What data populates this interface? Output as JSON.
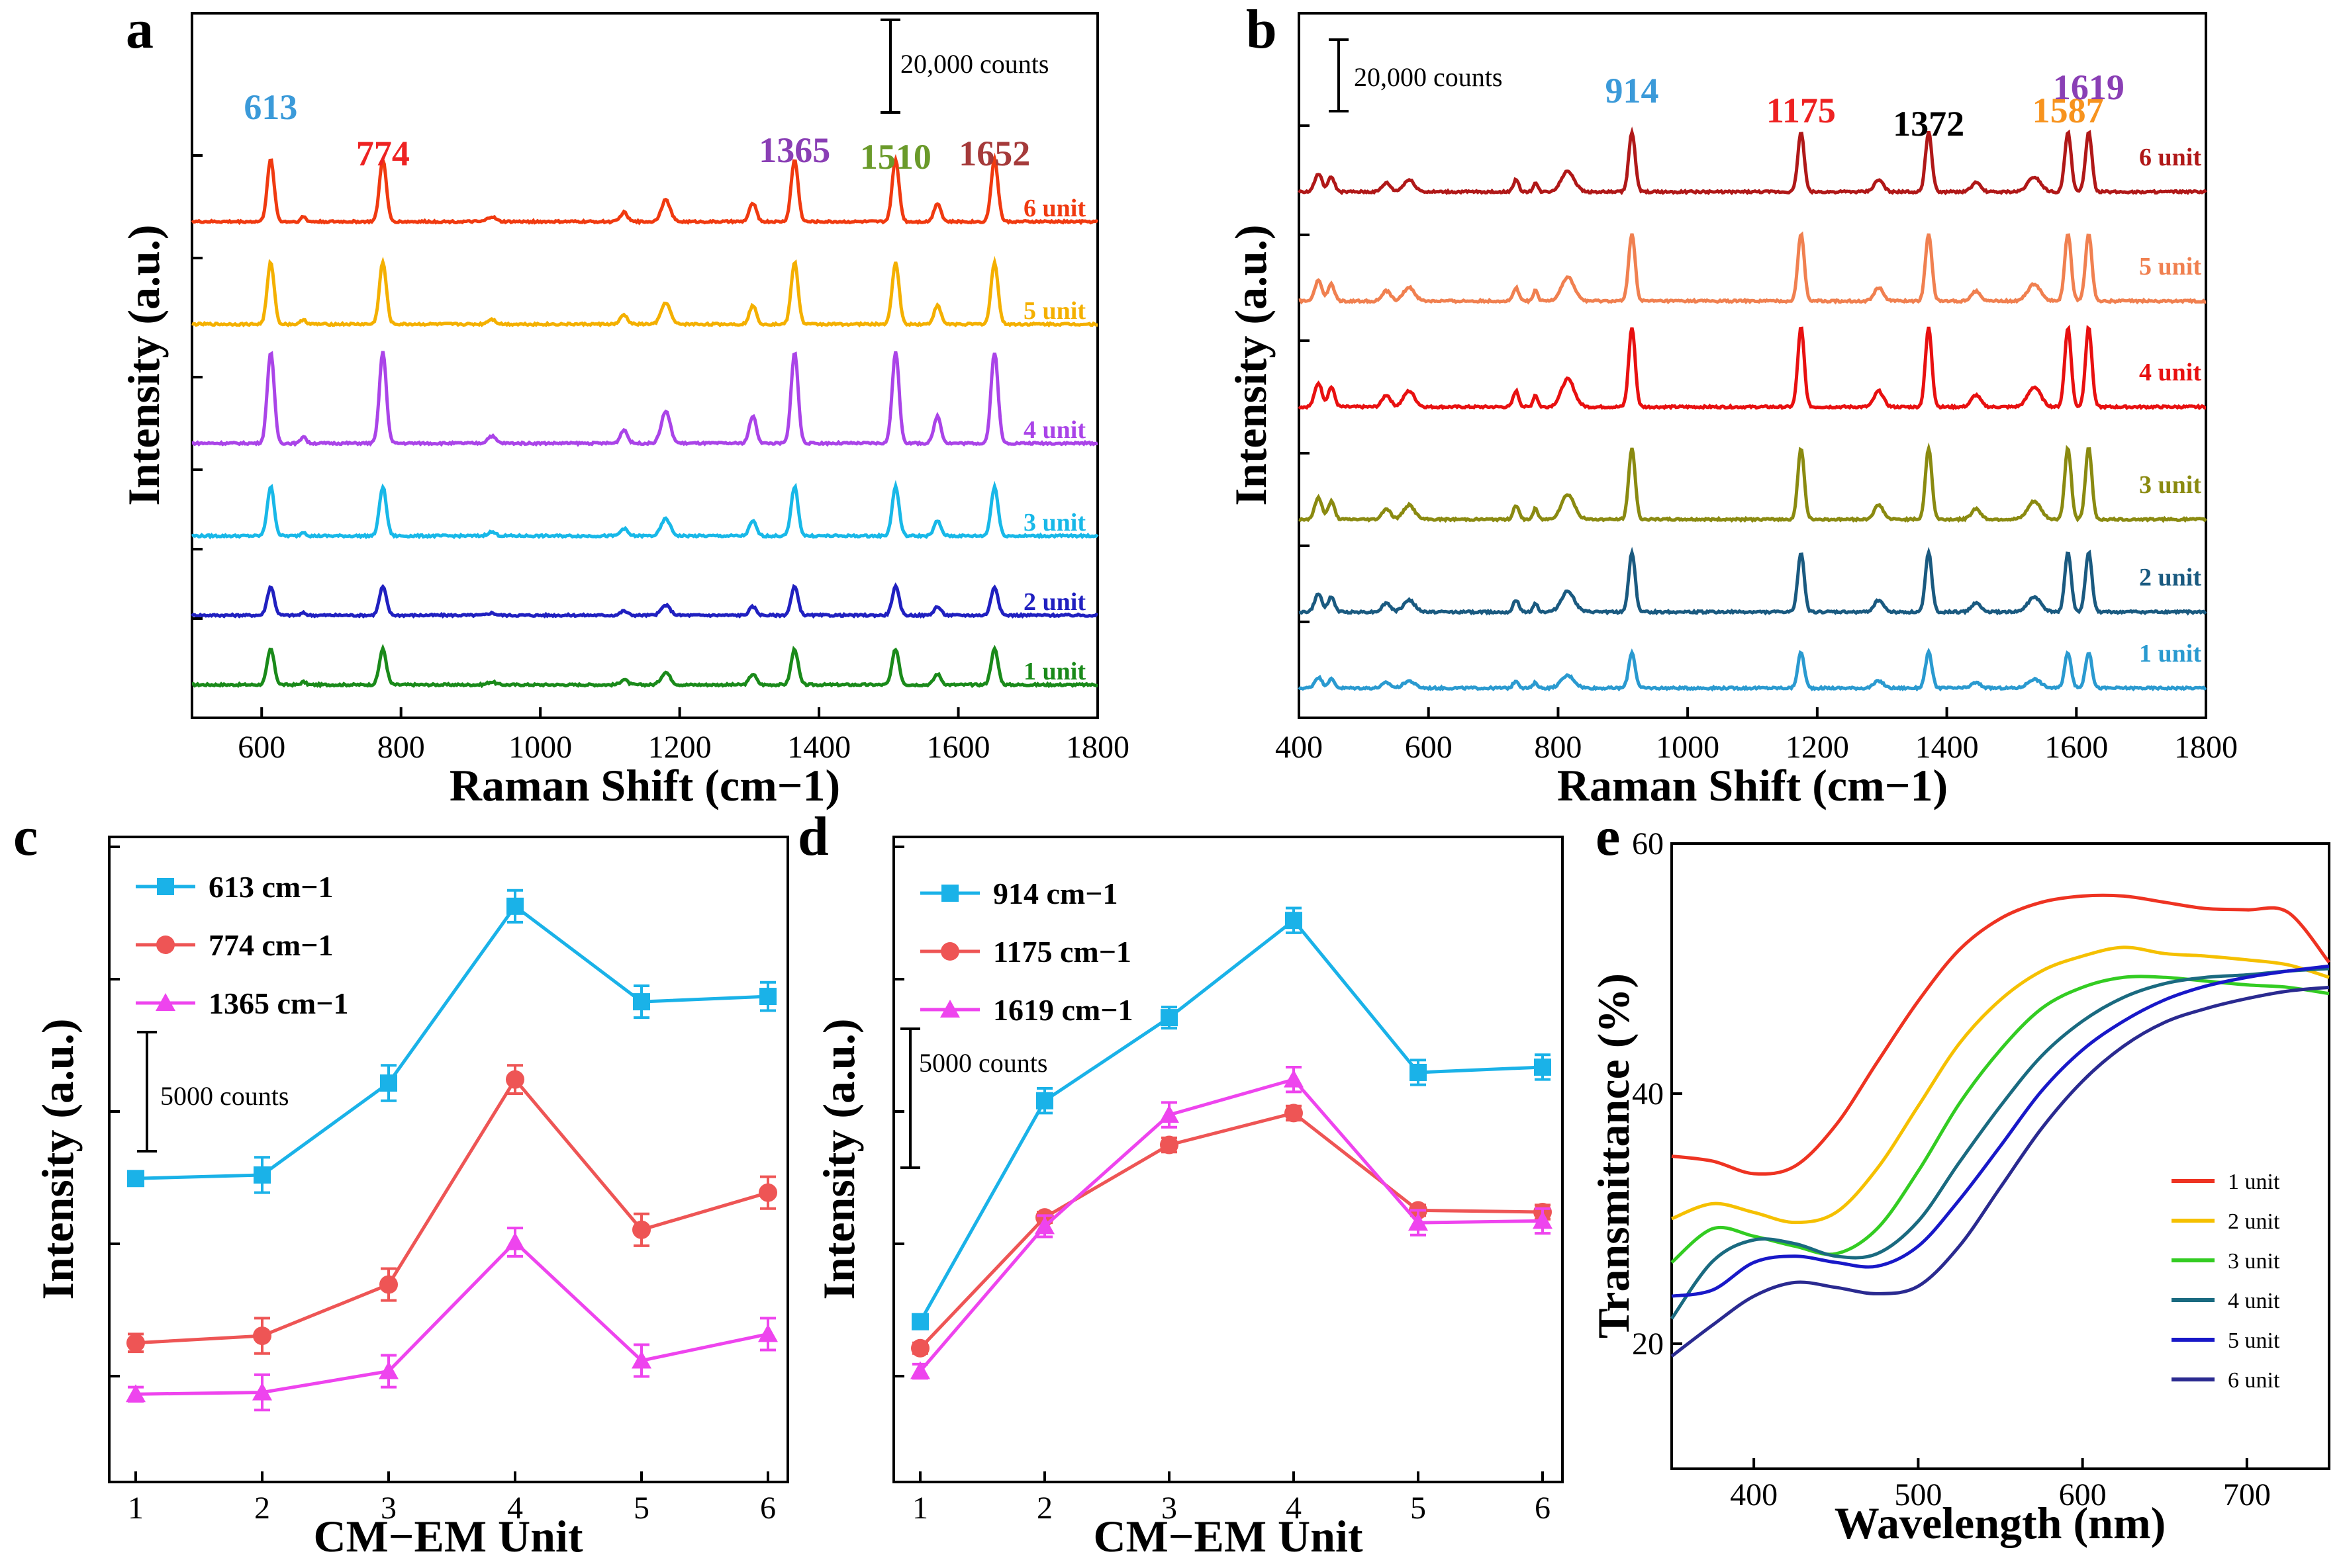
{
  "chart_data": [
    {
      "panel": "a",
      "type": "line",
      "xlabel": "Raman Shift (cm−1)",
      "ylabel": "Intensity (a.u.)",
      "xlim": [
        500,
        1800
      ],
      "xticks": [
        "600",
        "800",
        "1000",
        "1200",
        "1400",
        "1600",
        "1800"
      ],
      "scale_bar": "20,000 counts",
      "peaks": [
        {
          "pos": 613,
          "label": "613",
          "color": "#3b9ad9"
        },
        {
          "pos": 774,
          "label": "774",
          "color": "#ee2222"
        },
        {
          "pos": 1365,
          "label": "1365",
          "color": "#8a3fb5"
        },
        {
          "pos": 1510,
          "label": "1510",
          "color": "#6a9a2a"
        },
        {
          "pos": 1652,
          "label": "1652",
          "color": "#a53a3a"
        }
      ],
      "series": [
        {
          "name": "1 unit",
          "color": "#1a8a1a",
          "scale": 0.45
        },
        {
          "name": "2 unit",
          "color": "#2020c0",
          "scale": 0.36
        },
        {
          "name": "3 unit",
          "color": "#18b8e8",
          "scale": 0.62
        },
        {
          "name": "4 unit",
          "color": "#aa44e8",
          "scale": 1.15
        },
        {
          "name": "5 unit",
          "color": "#f4b000",
          "scale": 0.78
        },
        {
          "name": "6 unit",
          "color": "#f03a10",
          "scale": 0.78
        }
      ]
    },
    {
      "panel": "b",
      "type": "line",
      "xlabel": "Raman Shift (cm−1)",
      "ylabel": "Intensity (a.u.)",
      "xlim": [
        400,
        1800
      ],
      "xticks": [
        "400",
        "600",
        "800",
        "1000",
        "1200",
        "1400",
        "1600",
        "1800"
      ],
      "scale_bar": "20,000 counts",
      "peaks": [
        {
          "pos": 914,
          "label": "914",
          "color": "#3b9ad9"
        },
        {
          "pos": 1175,
          "label": "1175",
          "color": "#ee2222"
        },
        {
          "pos": 1372,
          "label": "1372",
          "color": "#000000"
        },
        {
          "pos": 1587,
          "label": "1587",
          "color": "#f7931e"
        },
        {
          "pos": 1619,
          "label": "1619",
          "color": "#8a3fb5"
        }
      ],
      "series": [
        {
          "name": "1 unit",
          "color": "#2a9ad0",
          "scale": 0.45
        },
        {
          "name": "2 unit",
          "color": "#1a5a80",
          "scale": 0.75
        },
        {
          "name": "3 unit",
          "color": "#8a8a10",
          "scale": 0.9
        },
        {
          "name": "4 unit",
          "color": "#e81010",
          "scale": 1.0
        },
        {
          "name": "5 unit",
          "color": "#f08050",
          "scale": 0.85
        },
        {
          "name": "6 unit",
          "color": "#b01818",
          "scale": 0.75
        }
      ]
    },
    {
      "panel": "c",
      "type": "line",
      "xlabel": "CM−EM Unit",
      "ylabel": "Intensity (a.u.)",
      "x": [
        1,
        2,
        3,
        4,
        5,
        6
      ],
      "xticks": [
        "1",
        "2",
        "3",
        "4",
        "5",
        "6"
      ],
      "ylim": [
        0,
        32000
      ],
      "scale_bar": "5000 counts",
      "series": [
        {
          "name": "613 cm−1",
          "marker": "square",
          "color": "#1ab2e8",
          "values": [
            13800,
            14000,
            19200,
            29200,
            23800,
            24100
          ],
          "err": [
            400,
            1000,
            1000,
            900,
            900,
            800
          ]
        },
        {
          "name": "774 cm−1",
          "marker": "circle",
          "color": "#ee5555",
          "values": [
            4500,
            4900,
            7800,
            19400,
            10900,
            13000
          ],
          "err": [
            500,
            1000,
            900,
            800,
            900,
            900
          ]
        },
        {
          "name": "1365 cm−1",
          "marker": "triangle",
          "color": "#ee44ee",
          "values": [
            1600,
            1700,
            2900,
            10200,
            3500,
            5000
          ],
          "err": [
            400,
            1000,
            900,
            800,
            900,
            900
          ]
        }
      ]
    },
    {
      "panel": "d",
      "type": "line",
      "xlabel": "CM−EM Unit",
      "ylabel": "Intensity (a.u.)",
      "x": [
        1,
        2,
        3,
        4,
        5,
        6
      ],
      "xticks": [
        "1",
        "2",
        "3",
        "4",
        "5",
        "6"
      ],
      "ylim": [
        0,
        32000
      ],
      "scale_bar": "5000 counts",
      "series": [
        {
          "name": "914 cm−1",
          "marker": "square",
          "color": "#1ab2e8",
          "values": [
            5700,
            18200,
            22900,
            28400,
            19800,
            20100
          ],
          "err": [
            400,
            700,
            600,
            700,
            700,
            700
          ]
        },
        {
          "name": "1175 cm−1",
          "marker": "circle",
          "color": "#ee5555",
          "values": [
            4200,
            11600,
            15700,
            17500,
            12000,
            11900
          ],
          "err": [
            300,
            300,
            400,
            400,
            300,
            400
          ]
        },
        {
          "name": "1619 cm−1",
          "marker": "triangle",
          "color": "#ee44ee",
          "values": [
            2900,
            11100,
            17400,
            19400,
            11300,
            11400
          ],
          "err": [
            400,
            600,
            700,
            700,
            700,
            700
          ]
        }
      ]
    },
    {
      "panel": "e",
      "type": "line",
      "xlabel": "Wavelength (nm)",
      "ylabel": "Transmittance (%)",
      "xlim": [
        350,
        750
      ],
      "ylim": [
        10,
        60
      ],
      "xticks": [
        "400",
        "500",
        "600",
        "700"
      ],
      "yticks": [
        "20",
        "40",
        "60"
      ],
      "x": [
        350,
        375,
        400,
        425,
        450,
        475,
        500,
        525,
        550,
        575,
        600,
        625,
        650,
        675,
        700,
        725,
        750
      ],
      "series": [
        {
          "name": "1 unit",
          "color": "#ee3322",
          "values": [
            35,
            34.6,
            33.6,
            34.2,
            37.5,
            42.5,
            47.4,
            51.5,
            54,
            55.3,
            55.8,
            55.8,
            55.3,
            54.8,
            54.7,
            54.5,
            50.5
          ]
        },
        {
          "name": "2 unit",
          "color": "#f5c000",
          "values": [
            30,
            31.2,
            30.5,
            29.7,
            30.5,
            34,
            39,
            44,
            47.5,
            49.8,
            51,
            51.7,
            51.2,
            51,
            50.7,
            50.3,
            49.3
          ]
        },
        {
          "name": "3 unit",
          "color": "#33cc22",
          "values": [
            26.5,
            29.2,
            28.6,
            27.8,
            27.2,
            29.2,
            33.8,
            39.2,
            43.5,
            46.8,
            48.5,
            49.3,
            49.3,
            49,
            48.7,
            48.5,
            48
          ]
        },
        {
          "name": "4 unit",
          "color": "#1a6a80",
          "values": [
            22,
            26.6,
            28.3,
            28,
            27,
            27.2,
            29.8,
            34.5,
            39,
            43,
            45.8,
            47.7,
            48.8,
            49.3,
            49.5,
            49.8,
            50
          ]
        },
        {
          "name": "5 unit",
          "color": "#1818c8",
          "values": [
            23.8,
            24.3,
            26.5,
            27,
            26.5,
            26.2,
            27.8,
            31.5,
            35.8,
            40.2,
            43.5,
            45.8,
            47.5,
            48.6,
            49.3,
            49.8,
            50.2
          ]
        },
        {
          "name": "6 unit",
          "color": "#2a2a90",
          "values": [
            19,
            21.5,
            23.8,
            24.9,
            24.5,
            24,
            24.6,
            27.8,
            32.5,
            37.2,
            41,
            43.8,
            45.7,
            46.8,
            47.6,
            48.2,
            48.5
          ]
        }
      ]
    }
  ]
}
